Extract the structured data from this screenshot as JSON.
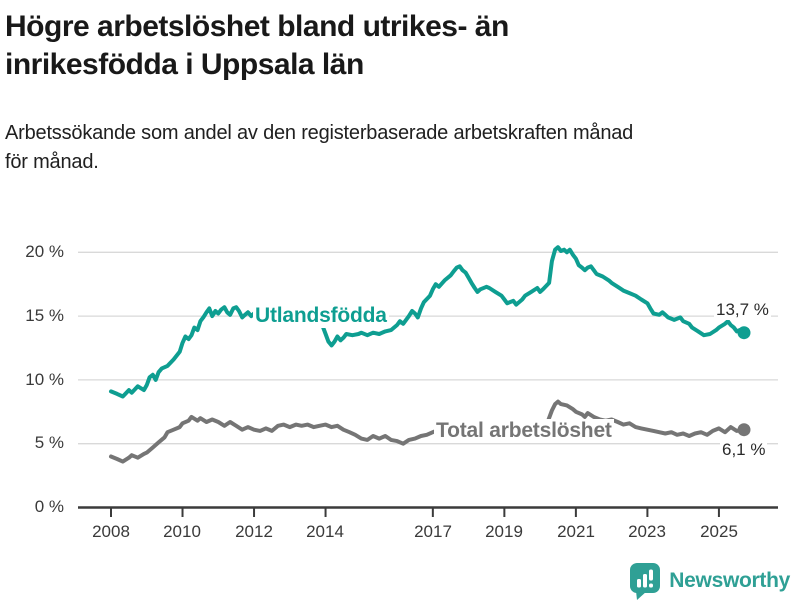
{
  "header": {
    "title_lines": [
      "Högre arbetslöshet bland utrikes- än",
      "inrikesfödda i Uppsala län"
    ],
    "subtitle_lines": [
      "Arbetssökande som andel av den registerbaserade arbetskraften månad",
      "för månad."
    ]
  },
  "chart_data": {
    "type": "line",
    "title": "Högre arbetslöshet bland utrikes- än inrikesfödda i Uppsala län",
    "subtitle": "Arbetssökande som andel av den registerbaserade arbetskraften månad för månad.",
    "unit": "%",
    "grid": "horizontal",
    "legend_position": "inline-labels-on-lines",
    "x_axis": {
      "range": [
        2007.1,
        2026.65
      ],
      "ticks": [
        {
          "v": 2008,
          "label": "2008"
        },
        {
          "v": 2010,
          "label": "2010"
        },
        {
          "v": 2012,
          "label": "2012"
        },
        {
          "v": 2014,
          "label": "2014"
        },
        {
          "v": 2017,
          "label": "2017"
        },
        {
          "v": 2019,
          "label": "2019"
        },
        {
          "v": 2021,
          "label": "2021"
        },
        {
          "v": 2023,
          "label": "2023"
        },
        {
          "v": 2025,
          "label": "2025"
        }
      ]
    },
    "y_axis": {
      "range": [
        0,
        20
      ],
      "ticks": [
        {
          "v": 20,
          "label": "20 %"
        },
        {
          "v": 15,
          "label": "15 %"
        },
        {
          "v": 10,
          "label": "10 %"
        },
        {
          "v": 5,
          "label": "5 %"
        },
        {
          "v": 0,
          "label": "0 %"
        }
      ]
    },
    "series": [
      {
        "name": "Utlandsfödda",
        "color": "#0e9e91",
        "end_value": 13.7,
        "end_label": "13,7 %",
        "points": [
          [
            2008.0,
            9.1
          ],
          [
            2008.17,
            8.9
          ],
          [
            2008.33,
            8.7
          ],
          [
            2008.5,
            9.2
          ],
          [
            2008.58,
            9.0
          ],
          [
            2008.75,
            9.5
          ],
          [
            2008.92,
            9.2
          ],
          [
            2009.0,
            9.6
          ],
          [
            2009.08,
            10.2
          ],
          [
            2009.17,
            10.4
          ],
          [
            2009.25,
            10.0
          ],
          [
            2009.33,
            10.6
          ],
          [
            2009.42,
            10.9
          ],
          [
            2009.58,
            11.1
          ],
          [
            2009.75,
            11.6
          ],
          [
            2009.92,
            12.2
          ],
          [
            2010.0,
            12.9
          ],
          [
            2010.08,
            13.4
          ],
          [
            2010.17,
            13.2
          ],
          [
            2010.25,
            13.5
          ],
          [
            2010.33,
            14.1
          ],
          [
            2010.42,
            13.9
          ],
          [
            2010.5,
            14.6
          ],
          [
            2010.58,
            14.9
          ],
          [
            2010.67,
            15.3
          ],
          [
            2010.75,
            15.6
          ],
          [
            2010.83,
            15.0
          ],
          [
            2010.92,
            15.4
          ],
          [
            2011.0,
            15.2
          ],
          [
            2011.08,
            15.5
          ],
          [
            2011.17,
            15.7
          ],
          [
            2011.25,
            15.3
          ],
          [
            2011.33,
            15.1
          ],
          [
            2011.42,
            15.6
          ],
          [
            2011.5,
            15.7
          ],
          [
            2011.58,
            15.4
          ],
          [
            2011.67,
            14.9
          ],
          [
            2011.75,
            15.1
          ],
          [
            2011.83,
            15.3
          ],
          [
            2011.92,
            15.0
          ],
          [
            2012.0,
            15.2
          ],
          [
            2012.17,
            15.5
          ],
          [
            2012.25,
            15.1
          ],
          [
            2012.33,
            14.8
          ],
          [
            2012.5,
            15.1
          ],
          [
            2012.58,
            15.4
          ],
          [
            2012.75,
            15.2
          ],
          [
            2012.92,
            15.5
          ],
          [
            2013.0,
            15.6
          ],
          [
            2013.08,
            15.3
          ],
          [
            2013.25,
            15.5
          ],
          [
            2013.33,
            15.2
          ],
          [
            2013.5,
            15.4
          ],
          [
            2013.58,
            15.1
          ],
          [
            2013.75,
            14.8
          ],
          [
            2013.92,
            14.2
          ],
          [
            2014.0,
            13.6
          ],
          [
            2014.08,
            13.0
          ],
          [
            2014.17,
            12.7
          ],
          [
            2014.25,
            13.0
          ],
          [
            2014.33,
            13.4
          ],
          [
            2014.42,
            13.1
          ],
          [
            2014.5,
            13.3
          ],
          [
            2014.58,
            13.6
          ],
          [
            2014.75,
            13.5
          ],
          [
            2014.92,
            13.6
          ],
          [
            2015.0,
            13.7
          ],
          [
            2015.17,
            13.5
          ],
          [
            2015.33,
            13.7
          ],
          [
            2015.5,
            13.6
          ],
          [
            2015.67,
            13.8
          ],
          [
            2015.83,
            13.9
          ],
          [
            2016.0,
            14.3
          ],
          [
            2016.08,
            14.6
          ],
          [
            2016.17,
            14.4
          ],
          [
            2016.33,
            15.0
          ],
          [
            2016.42,
            15.4
          ],
          [
            2016.5,
            15.2
          ],
          [
            2016.58,
            14.9
          ],
          [
            2016.67,
            15.6
          ],
          [
            2016.75,
            16.1
          ],
          [
            2016.92,
            16.6
          ],
          [
            2017.0,
            17.1
          ],
          [
            2017.08,
            17.5
          ],
          [
            2017.17,
            17.3
          ],
          [
            2017.33,
            17.8
          ],
          [
            2017.5,
            18.2
          ],
          [
            2017.58,
            18.5
          ],
          [
            2017.67,
            18.8
          ],
          [
            2017.75,
            18.9
          ],
          [
            2017.83,
            18.6
          ],
          [
            2017.92,
            18.4
          ],
          [
            2018.0,
            18.0
          ],
          [
            2018.08,
            17.6
          ],
          [
            2018.17,
            17.2
          ],
          [
            2018.25,
            16.9
          ],
          [
            2018.33,
            17.1
          ],
          [
            2018.5,
            17.3
          ],
          [
            2018.58,
            17.2
          ],
          [
            2018.75,
            16.9
          ],
          [
            2018.92,
            16.6
          ],
          [
            2019.0,
            16.3
          ],
          [
            2019.08,
            16.0
          ],
          [
            2019.25,
            16.2
          ],
          [
            2019.33,
            15.9
          ],
          [
            2019.5,
            16.3
          ],
          [
            2019.58,
            16.6
          ],
          [
            2019.75,
            16.9
          ],
          [
            2019.92,
            17.2
          ],
          [
            2020.0,
            16.9
          ],
          [
            2020.08,
            17.1
          ],
          [
            2020.25,
            17.6
          ],
          [
            2020.33,
            19.3
          ],
          [
            2020.42,
            20.2
          ],
          [
            2020.5,
            20.4
          ],
          [
            2020.58,
            20.1
          ],
          [
            2020.67,
            20.2
          ],
          [
            2020.75,
            20.0
          ],
          [
            2020.83,
            20.2
          ],
          [
            2020.92,
            19.8
          ],
          [
            2021.0,
            19.5
          ],
          [
            2021.08,
            19.0
          ],
          [
            2021.17,
            18.8
          ],
          [
            2021.25,
            18.6
          ],
          [
            2021.33,
            18.8
          ],
          [
            2021.42,
            18.9
          ],
          [
            2021.5,
            18.6
          ],
          [
            2021.58,
            18.3
          ],
          [
            2021.75,
            18.1
          ],
          [
            2021.92,
            17.8
          ],
          [
            2022.0,
            17.6
          ],
          [
            2022.17,
            17.3
          ],
          [
            2022.33,
            17.0
          ],
          [
            2022.5,
            16.8
          ],
          [
            2022.67,
            16.6
          ],
          [
            2022.83,
            16.3
          ],
          [
            2023.0,
            16.0
          ],
          [
            2023.08,
            15.6
          ],
          [
            2023.17,
            15.2
          ],
          [
            2023.33,
            15.1
          ],
          [
            2023.42,
            15.3
          ],
          [
            2023.5,
            15.1
          ],
          [
            2023.58,
            14.9
          ],
          [
            2023.75,
            14.7
          ],
          [
            2023.92,
            14.9
          ],
          [
            2024.0,
            14.6
          ],
          [
            2024.17,
            14.4
          ],
          [
            2024.25,
            14.1
          ],
          [
            2024.42,
            13.8
          ],
          [
            2024.58,
            13.5
          ],
          [
            2024.75,
            13.6
          ],
          [
            2024.92,
            13.9
          ],
          [
            2025.0,
            14.1
          ],
          [
            2025.17,
            14.4
          ],
          [
            2025.25,
            14.6
          ],
          [
            2025.33,
            14.3
          ],
          [
            2025.42,
            14.1
          ],
          [
            2025.5,
            13.8
          ],
          [
            2025.58,
            13.9
          ],
          [
            2025.7,
            13.7
          ]
        ]
      },
      {
        "name": "Total arbetslöshet",
        "color": "#757575",
        "end_value": 6.1,
        "end_label": "6,1 %",
        "points": [
          [
            2008.0,
            4.0
          ],
          [
            2008.17,
            3.8
          ],
          [
            2008.33,
            3.6
          ],
          [
            2008.5,
            3.9
          ],
          [
            2008.58,
            4.1
          ],
          [
            2008.75,
            3.9
          ],
          [
            2008.92,
            4.2
          ],
          [
            2009.0,
            4.3
          ],
          [
            2009.17,
            4.7
          ],
          [
            2009.33,
            5.1
          ],
          [
            2009.5,
            5.5
          ],
          [
            2009.58,
            5.9
          ],
          [
            2009.75,
            6.1
          ],
          [
            2009.92,
            6.3
          ],
          [
            2010.0,
            6.6
          ],
          [
            2010.17,
            6.8
          ],
          [
            2010.25,
            7.1
          ],
          [
            2010.42,
            6.8
          ],
          [
            2010.5,
            7.0
          ],
          [
            2010.67,
            6.7
          ],
          [
            2010.83,
            6.9
          ],
          [
            2011.0,
            6.7
          ],
          [
            2011.17,
            6.4
          ],
          [
            2011.33,
            6.7
          ],
          [
            2011.5,
            6.4
          ],
          [
            2011.67,
            6.1
          ],
          [
            2011.83,
            6.3
          ],
          [
            2012.0,
            6.1
          ],
          [
            2012.17,
            6.0
          ],
          [
            2012.33,
            6.2
          ],
          [
            2012.5,
            6.0
          ],
          [
            2012.67,
            6.4
          ],
          [
            2012.83,
            6.5
          ],
          [
            2013.0,
            6.3
          ],
          [
            2013.17,
            6.5
          ],
          [
            2013.33,
            6.4
          ],
          [
            2013.5,
            6.5
          ],
          [
            2013.67,
            6.3
          ],
          [
            2013.83,
            6.4
          ],
          [
            2014.0,
            6.5
          ],
          [
            2014.17,
            6.3
          ],
          [
            2014.33,
            6.4
          ],
          [
            2014.5,
            6.1
          ],
          [
            2014.67,
            5.9
          ],
          [
            2014.83,
            5.7
          ],
          [
            2015.0,
            5.4
          ],
          [
            2015.17,
            5.3
          ],
          [
            2015.33,
            5.6
          ],
          [
            2015.5,
            5.4
          ],
          [
            2015.67,
            5.6
          ],
          [
            2015.83,
            5.3
          ],
          [
            2016.0,
            5.2
          ],
          [
            2016.17,
            5.0
          ],
          [
            2016.33,
            5.3
          ],
          [
            2016.5,
            5.4
          ],
          [
            2016.67,
            5.6
          ],
          [
            2016.83,
            5.7
          ],
          [
            2017.0,
            5.9
          ],
          [
            2017.17,
            6.1
          ],
          [
            2017.33,
            6.0
          ],
          [
            2017.5,
            5.9
          ],
          [
            2017.67,
            6.0
          ],
          [
            2017.83,
            5.9
          ],
          [
            2018.0,
            6.0
          ],
          [
            2018.25,
            5.9
          ],
          [
            2018.5,
            6.0
          ],
          [
            2018.75,
            5.8
          ],
          [
            2019.0,
            5.8
          ],
          [
            2019.25,
            5.7
          ],
          [
            2019.5,
            5.9
          ],
          [
            2019.75,
            6.0
          ],
          [
            2020.0,
            6.1
          ],
          [
            2020.17,
            6.4
          ],
          [
            2020.33,
            7.6
          ],
          [
            2020.42,
            8.1
          ],
          [
            2020.5,
            8.3
          ],
          [
            2020.58,
            8.1
          ],
          [
            2020.75,
            8.0
          ],
          [
            2020.92,
            7.7
          ],
          [
            2021.0,
            7.5
          ],
          [
            2021.17,
            7.3
          ],
          [
            2021.25,
            7.1
          ],
          [
            2021.33,
            7.4
          ],
          [
            2021.5,
            7.1
          ],
          [
            2021.67,
            6.9
          ],
          [
            2021.83,
            6.8
          ],
          [
            2022.0,
            6.9
          ],
          [
            2022.17,
            6.7
          ],
          [
            2022.33,
            6.5
          ],
          [
            2022.5,
            6.6
          ],
          [
            2022.67,
            6.3
          ],
          [
            2022.83,
            6.2
          ],
          [
            2023.0,
            6.1
          ],
          [
            2023.17,
            6.0
          ],
          [
            2023.33,
            5.9
          ],
          [
            2023.5,
            5.8
          ],
          [
            2023.67,
            5.9
          ],
          [
            2023.83,
            5.7
          ],
          [
            2024.0,
            5.8
          ],
          [
            2024.17,
            5.6
          ],
          [
            2024.33,
            5.8
          ],
          [
            2024.5,
            5.9
          ],
          [
            2024.67,
            5.7
          ],
          [
            2024.83,
            6.0
          ],
          [
            2025.0,
            6.2
          ],
          [
            2025.17,
            5.9
          ],
          [
            2025.33,
            6.3
          ],
          [
            2025.5,
            6.0
          ],
          [
            2025.7,
            6.1
          ]
        ]
      }
    ],
    "colors": {
      "grid": "#d9d9d9",
      "axis": "#3b3b3b",
      "tick_text": "#3a3a3a"
    }
  },
  "branding": {
    "logo_text": "Newsworthy",
    "logo_color": "#2fa095",
    "icon": "bar-chart-speech-bubble-icon"
  }
}
